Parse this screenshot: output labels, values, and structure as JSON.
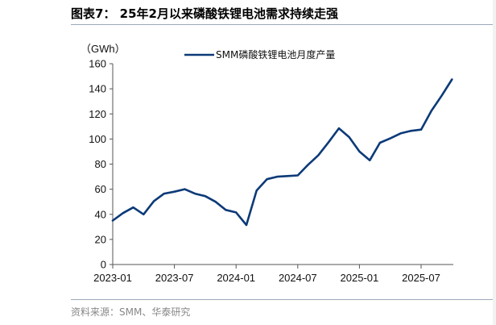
{
  "title": "图表7： 25年2月以来磷酸铁锂电池需求持续走强",
  "source": "资料来源：SMM、华泰研究",
  "colors": {
    "series": "#0c3a78",
    "axis": "#555555",
    "rule": "#9aaabb"
  },
  "chart_data": {
    "type": "line",
    "unit_label": "（GWh）",
    "ylim": [
      0,
      160
    ],
    "yticks": [
      0,
      20,
      40,
      60,
      80,
      100,
      120,
      140,
      160
    ],
    "xticks": [
      "2023-01",
      "2023-07",
      "2024-01",
      "2024-07",
      "2025-01",
      "2025-07"
    ],
    "legend_position": "top",
    "grid": false,
    "series": [
      {
        "name": "SMM磷酸铁锂电池月度产量",
        "x": [
          "2023-01",
          "2023-02",
          "2023-03",
          "2023-04",
          "2023-05",
          "2023-06",
          "2023-07",
          "2023-08",
          "2023-09",
          "2023-10",
          "2023-11",
          "2023-12",
          "2024-01",
          "2024-02",
          "2024-03",
          "2024-04",
          "2024-05",
          "2024-06",
          "2024-07",
          "2024-08",
          "2024-09",
          "2024-10",
          "2024-11",
          "2024-12",
          "2025-01",
          "2025-02",
          "2025-03",
          "2025-04",
          "2025-05",
          "2025-06",
          "2025-07",
          "2025-08",
          "2025-09",
          "2025-10"
        ],
        "values": [
          35,
          41,
          45.5,
          40,
          50.5,
          56.5,
          58,
          60,
          56.5,
          54.5,
          50,
          43.5,
          41.5,
          31.5,
          59,
          68,
          70,
          70.5,
          71,
          79.5,
          87,
          97.5,
          108.5,
          101.5,
          90,
          83,
          97,
          100.5,
          104.5,
          106.5,
          107.5,
          122.5,
          134.5,
          147.5
        ]
      }
    ]
  }
}
